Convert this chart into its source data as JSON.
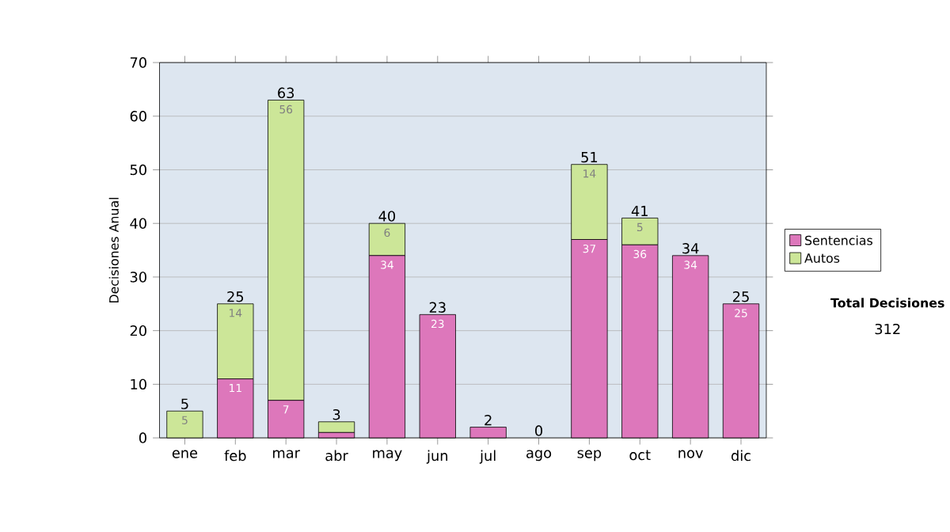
{
  "chart_data": {
    "type": "bar",
    "stacked": true,
    "ylabel": "Decisiones Anual",
    "categories": [
      "ene",
      "feb",
      "mar",
      "abr",
      "may",
      "jun",
      "jul",
      "ago",
      "sep",
      "oct",
      "nov",
      "dic"
    ],
    "series": [
      {
        "name": "Sentencias",
        "color": "#dd77bb",
        "values": [
          0,
          11,
          7,
          1,
          34,
          23,
          2,
          0,
          37,
          36,
          34,
          25
        ],
        "value_labels": [
          null,
          "11",
          "7",
          null,
          "34",
          "23",
          null,
          null,
          "37",
          "36",
          "34",
          "25"
        ]
      },
      {
        "name": "Autos",
        "color": "#cce698",
        "values": [
          5,
          14,
          56,
          2,
          6,
          0,
          0,
          0,
          14,
          5,
          0,
          0
        ],
        "value_labels": [
          "5",
          "14",
          "56",
          null,
          "6",
          null,
          null,
          null,
          "14",
          "5",
          null,
          null
        ]
      }
    ],
    "totals": [
      "5",
      "25",
      "63",
      "3",
      "40",
      "23",
      "2",
      "0",
      "51",
      "41",
      "34",
      "25"
    ],
    "ylim": [
      0,
      70
    ],
    "yticks": [
      0,
      10,
      20,
      30,
      40,
      50,
      60,
      70
    ],
    "grid": "y",
    "legend": "right",
    "annotations": [
      "Total Decisiones",
      "312"
    ]
  }
}
